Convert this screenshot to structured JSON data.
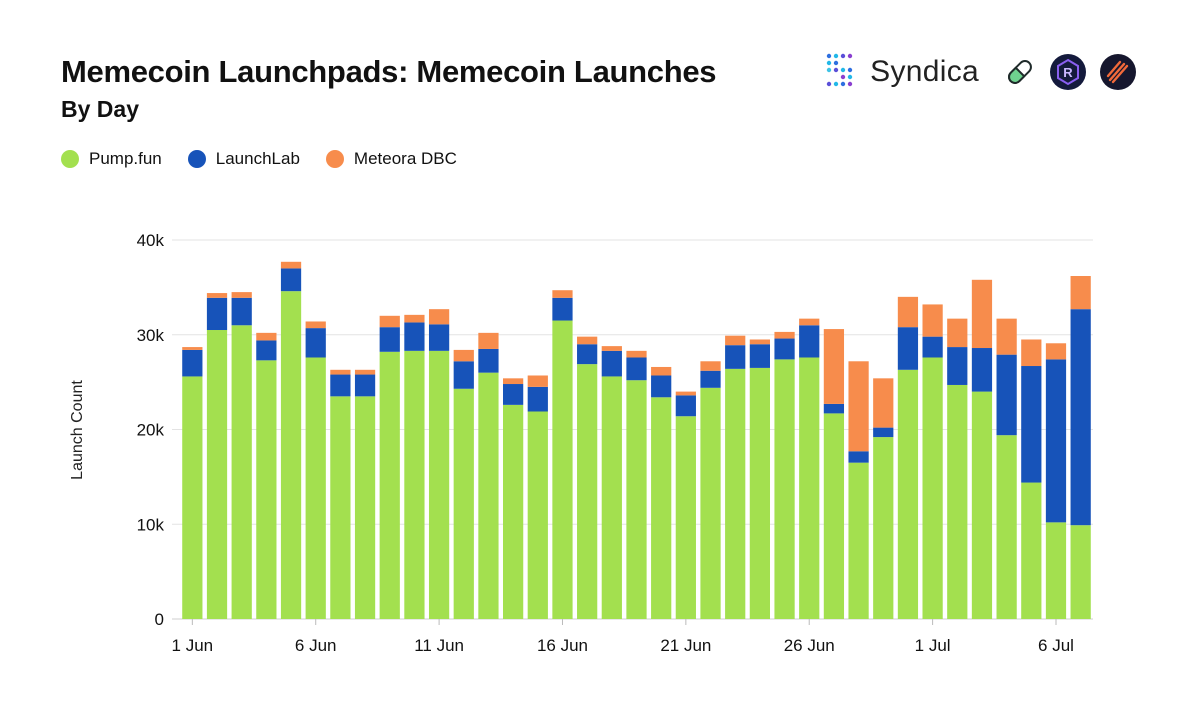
{
  "header": {
    "title": "Memecoin Launchpads: Memecoin Launches",
    "subtitle": "By Day"
  },
  "brand": {
    "name": "Syndica",
    "logo_icon": "syndica-dots-icon",
    "partner_icons": [
      "pill-icon",
      "raydium-icon",
      "meteora-icon"
    ]
  },
  "colors": {
    "pump": "#a3e04f",
    "launchlab": "#1753b9",
    "meteora": "#f78c4c",
    "grid": "#e3e3e3"
  },
  "chart_data": {
    "type": "bar",
    "stacked": true,
    "title": "Memecoin Launchpads: Memecoin Launches",
    "subtitle": "By Day",
    "xlabel": "",
    "ylabel": "Launch Count",
    "ylim": [
      0,
      40000
    ],
    "yticks": [
      0,
      10000,
      20000,
      30000,
      40000
    ],
    "ytick_labels": [
      "0",
      "10k",
      "20k",
      "30k",
      "40k"
    ],
    "grid": true,
    "legend_position": "top-left",
    "xtick_labels": [
      {
        "index": 0,
        "label": "1 Jun"
      },
      {
        "index": 5,
        "label": "6 Jun"
      },
      {
        "index": 10,
        "label": "11 Jun"
      },
      {
        "index": 15,
        "label": "16 Jun"
      },
      {
        "index": 20,
        "label": "21 Jun"
      },
      {
        "index": 25,
        "label": "26 Jun"
      },
      {
        "index": 30,
        "label": "1 Jul"
      },
      {
        "index": 35,
        "label": "6 Jul"
      }
    ],
    "categories": [
      "1 Jun",
      "2 Jun",
      "3 Jun",
      "4 Jun",
      "5 Jun",
      "6 Jun",
      "7 Jun",
      "8 Jun",
      "9 Jun",
      "10 Jun",
      "11 Jun",
      "12 Jun",
      "13 Jun",
      "14 Jun",
      "15 Jun",
      "16 Jun",
      "17 Jun",
      "18 Jun",
      "19 Jun",
      "20 Jun",
      "21 Jun",
      "22 Jun",
      "23 Jun",
      "24 Jun",
      "25 Jun",
      "26 Jun",
      "27 Jun",
      "28 Jun",
      "29 Jun",
      "30 Jun",
      "1 Jul",
      "2 Jul",
      "3 Jul",
      "4 Jul",
      "5 Jul",
      "6 Jul",
      "7 Jul"
    ],
    "series": [
      {
        "name": "Pump.fun",
        "values": [
          25600,
          30500,
          31000,
          27300,
          34600,
          27600,
          23500,
          23500,
          28200,
          28300,
          28300,
          24300,
          26000,
          22600,
          21900,
          31500,
          26900,
          25600,
          25200,
          23400,
          21400,
          24400,
          26400,
          26500,
          27400,
          27600,
          21700,
          16500,
          19200,
          26300,
          27600,
          24700,
          24000,
          19400,
          14400,
          10200,
          9900
        ]
      },
      {
        "name": "LaunchLab",
        "values": [
          2800,
          3400,
          2900,
          2100,
          2400,
          3100,
          2300,
          2300,
          2600,
          3000,
          2800,
          2900,
          2500,
          2200,
          2600,
          2400,
          2100,
          2700,
          2400,
          2300,
          2200,
          1800,
          2500,
          2500,
          2200,
          3400,
          1000,
          1200,
          1000,
          4500,
          2200,
          4000,
          4600,
          8500,
          12300,
          17200,
          22800
        ]
      },
      {
        "name": "Meteora DBC",
        "values": [
          300,
          500,
          600,
          800,
          700,
          700,
          500,
          500,
          1200,
          800,
          1600,
          1200,
          1700,
          600,
          1200,
          800,
          800,
          500,
          700,
          900,
          400,
          1000,
          1000,
          500,
          700,
          700,
          7900,
          9500,
          5200,
          3200,
          3400,
          3000,
          7200,
          3800,
          2800,
          1700,
          3500
        ]
      }
    ]
  }
}
